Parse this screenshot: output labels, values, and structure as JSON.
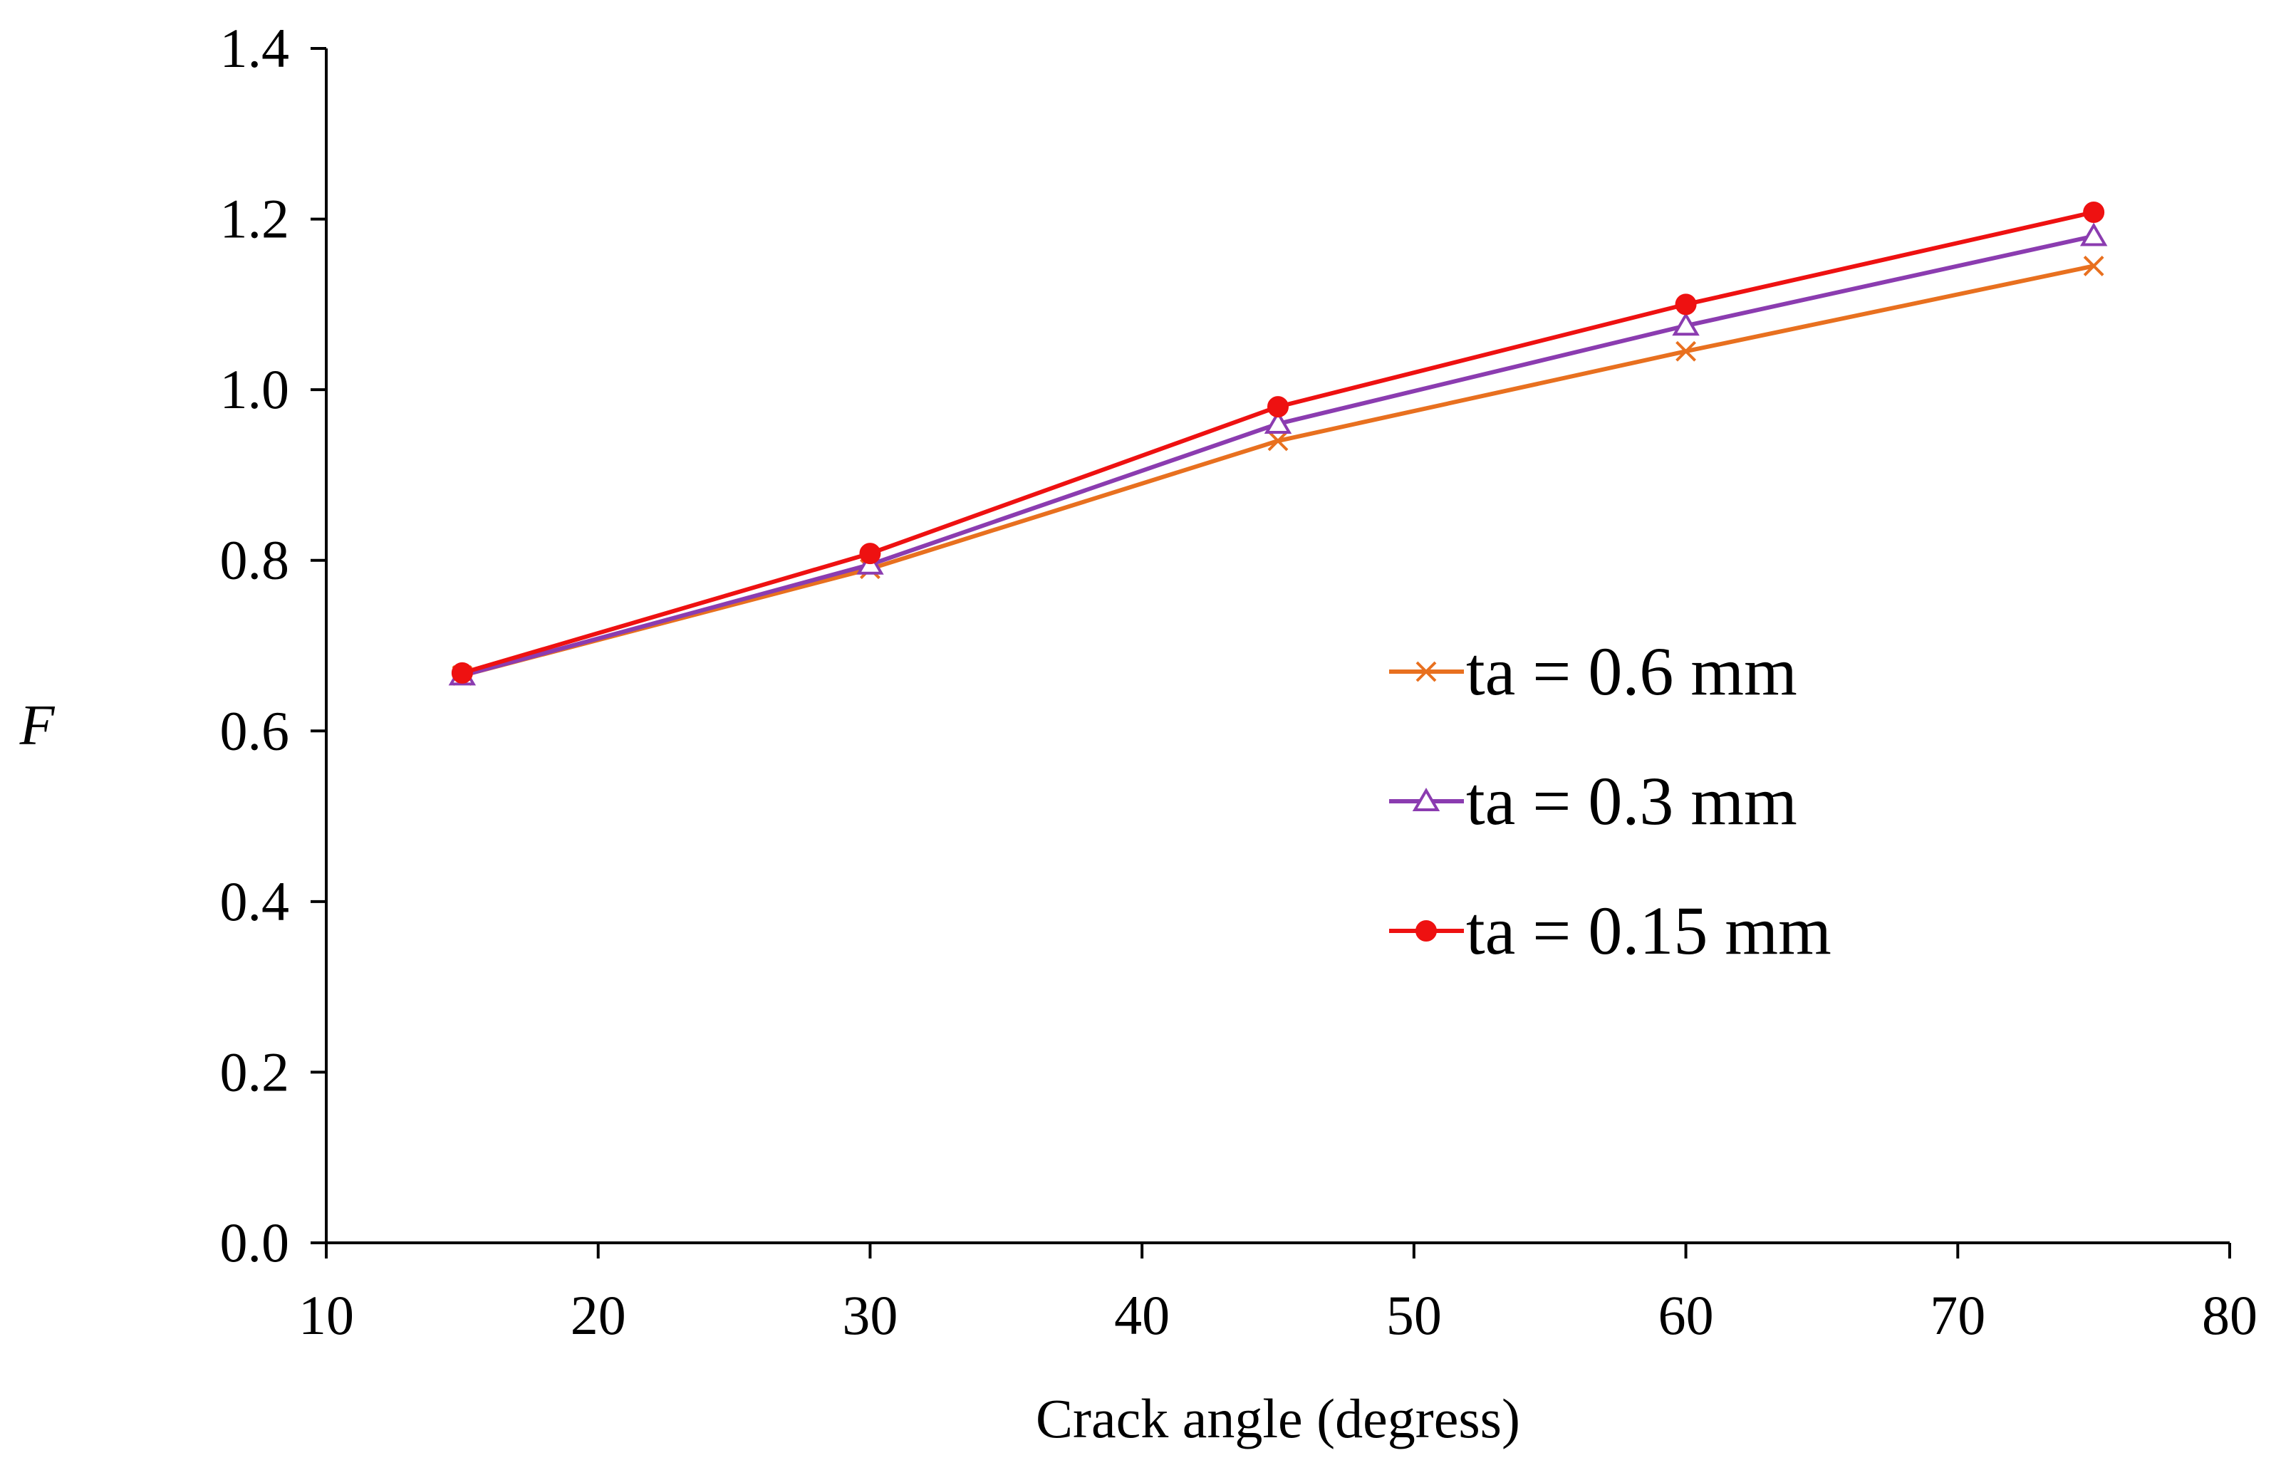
{
  "chart_data": {
    "type": "line",
    "title": "",
    "xlabel": "Crack angle (degress)",
    "ylabel": "F",
    "xlim": [
      10,
      80
    ],
    "ylim": [
      0.0,
      1.4
    ],
    "x_ticks": [
      10,
      20,
      30,
      40,
      50,
      60,
      70,
      80
    ],
    "y_ticks": [
      0.0,
      0.2,
      0.4,
      0.6,
      0.8,
      1.0,
      1.2,
      1.4
    ],
    "x_tick_labels": [
      "10",
      "20",
      "30",
      "40",
      "50",
      "60",
      "70",
      "80"
    ],
    "y_tick_labels": [
      "0.0",
      "0.2",
      "0.4",
      "0.6",
      "0.8",
      "1.0",
      "1.2",
      "1.4"
    ],
    "grid": false,
    "legend_position": "center-right",
    "x": [
      15,
      30,
      45,
      60,
      75
    ],
    "series": [
      {
        "name": "ta = 0.6 mm",
        "marker": "x",
        "color": "#E8701F",
        "values": [
          0.665,
          0.79,
          0.94,
          1.045,
          1.145
        ]
      },
      {
        "name": "ta = 0.3 mm",
        "marker": "triangle",
        "color": "#8B3CB0",
        "values": [
          0.665,
          0.795,
          0.96,
          1.075,
          1.18
        ]
      },
      {
        "name": "ta = 0.15 mm",
        "marker": "circle",
        "color": "#EE1111",
        "values": [
          0.668,
          0.808,
          0.98,
          1.1,
          1.208
        ]
      }
    ]
  }
}
